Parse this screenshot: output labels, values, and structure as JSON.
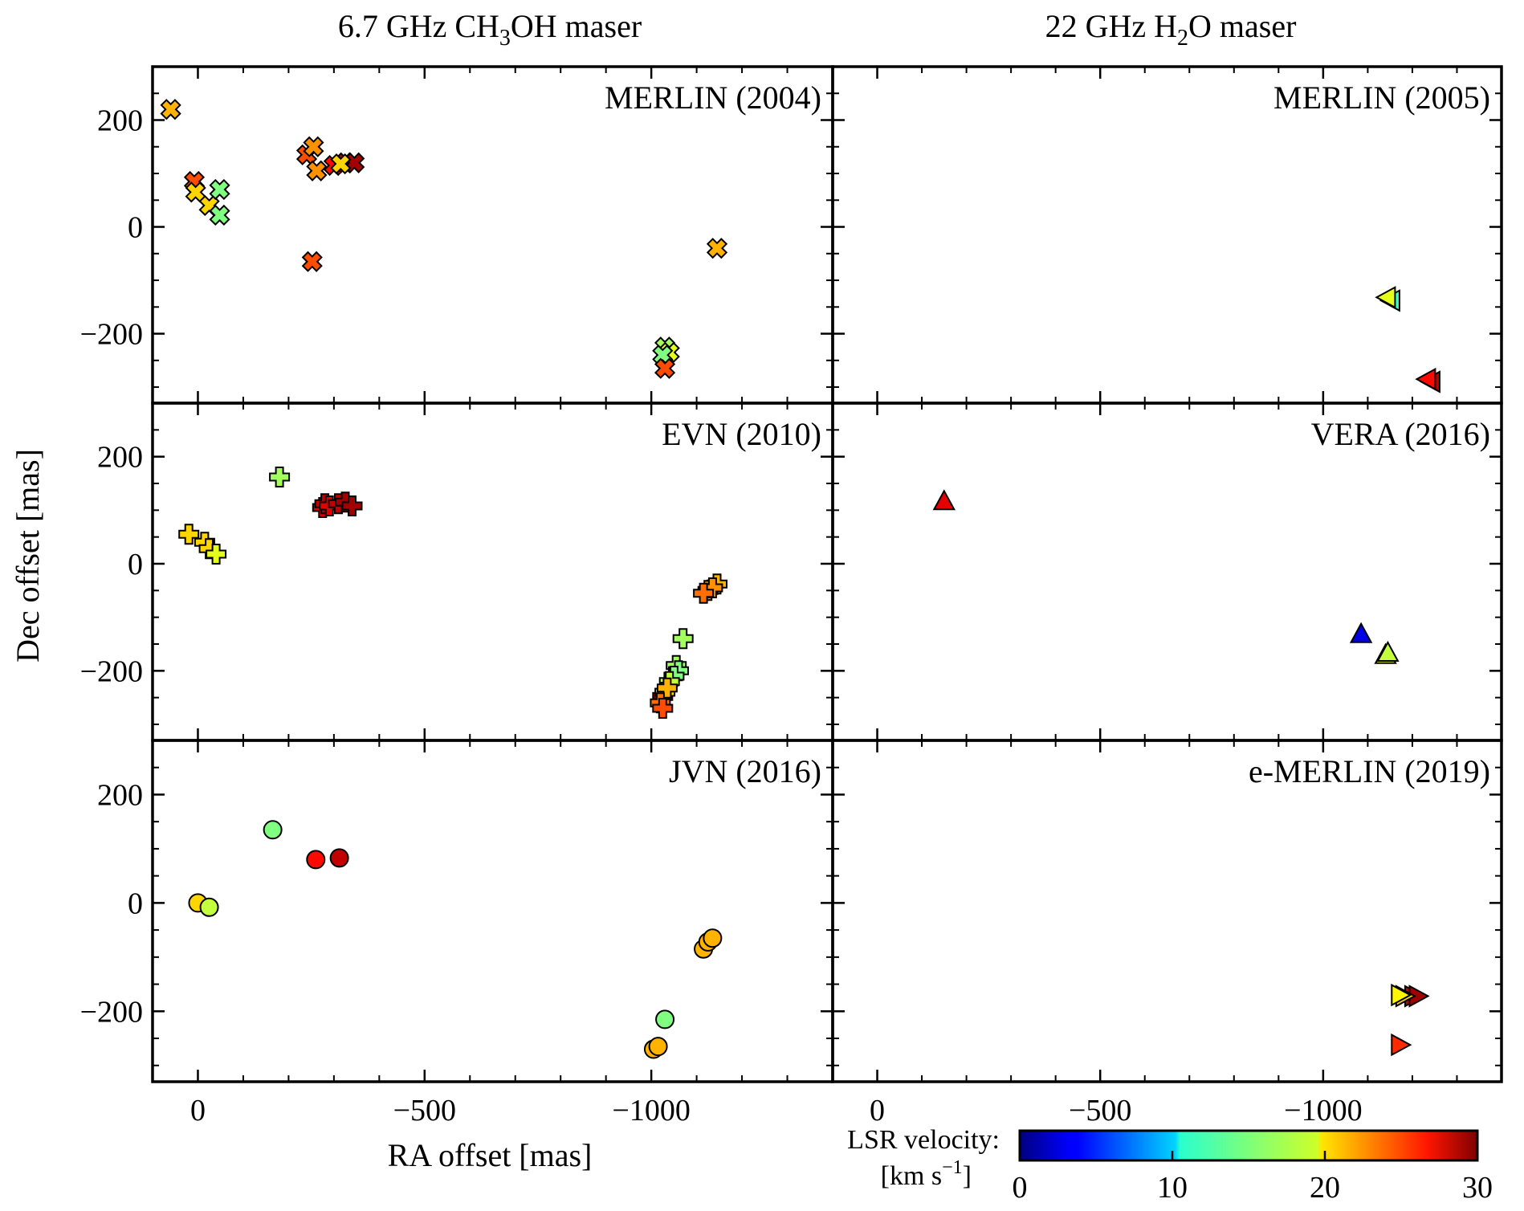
{
  "chart_data": {
    "type": "scatter",
    "column_titles": [
      {
        "main": "6.7 GHz CH",
        "sub": "3",
        "tail": "OH maser"
      },
      {
        "main": "22 GHz H",
        "sub": "2",
        "tail": "O maser"
      }
    ],
    "xlabel": "RA offset [mas]",
    "ylabel": "Dec offset [mas]",
    "xlim": [
      100,
      -1400
    ],
    "ylim": [
      -330,
      300
    ],
    "xticks": [
      0,
      -500,
      -1000
    ],
    "xtick_labels": [
      "0",
      "−500",
      "−1000"
    ],
    "yticks": [
      200,
      0,
      -200
    ],
    "ytick_labels": [
      "200",
      "0",
      "−200"
    ],
    "colorbar": {
      "label_line1": "LSR velocity:",
      "label_line2": "[km s",
      "label_exp": "−1",
      "label_close": "]",
      "range": [
        0,
        30
      ],
      "ticks": [
        0,
        10,
        20,
        30
      ],
      "tick_labels": [
        "0",
        "10",
        "20",
        "30"
      ],
      "colormap": "jet"
    },
    "panels": [
      {
        "id": "merlin-2004",
        "label": "MERLIN (2004)",
        "marker": "x",
        "points": [
          [
            60,
            220,
            21
          ],
          [
            8,
            85,
            24
          ],
          [
            5,
            65,
            20
          ],
          [
            -25,
            40,
            20
          ],
          [
            -48,
            70,
            15
          ],
          [
            -48,
            22,
            15
          ],
          [
            -240,
            135,
            24
          ],
          [
            -255,
            150,
            22
          ],
          [
            -262,
            105,
            22
          ],
          [
            -300,
            115,
            26
          ],
          [
            -325,
            120,
            28
          ],
          [
            -345,
            120,
            29
          ],
          [
            -315,
            118,
            20
          ],
          [
            -252,
            -65,
            24
          ],
          [
            -1145,
            -40,
            21
          ],
          [
            -1030,
            -225,
            16
          ],
          [
            -1040,
            -235,
            18
          ],
          [
            -1025,
            -240,
            15
          ],
          [
            -1030,
            -265,
            24
          ]
        ]
      },
      {
        "id": "merlin-2005",
        "label": "MERLIN (2005)",
        "marker": "tri-left",
        "points": [
          [
            -1155,
            -138,
            13
          ],
          [
            -1145,
            -132,
            18
          ],
          [
            -1245,
            -290,
            28
          ],
          [
            -1235,
            -285,
            26
          ]
        ]
      },
      {
        "id": "evn-2010",
        "label": "EVN (2010)",
        "marker": "plus",
        "points": [
          [
            20,
            55,
            20
          ],
          [
            -15,
            40,
            20
          ],
          [
            -25,
            28,
            20
          ],
          [
            -40,
            18,
            18
          ],
          [
            -180,
            162,
            16
          ],
          [
            -275,
            105,
            27
          ],
          [
            -280,
            112,
            28
          ],
          [
            -290,
            108,
            27
          ],
          [
            -310,
            112,
            28
          ],
          [
            -325,
            115,
            29
          ],
          [
            -340,
            108,
            29
          ],
          [
            -1145,
            -38,
            21
          ],
          [
            -1125,
            -50,
            22
          ],
          [
            -1135,
            -45,
            22
          ],
          [
            -1115,
            -55,
            23
          ],
          [
            -1070,
            -140,
            16
          ],
          [
            -1055,
            -190,
            16
          ],
          [
            -1060,
            -200,
            15
          ],
          [
            -1050,
            -210,
            15
          ],
          [
            -1040,
            -220,
            17
          ],
          [
            -1025,
            -248,
            30
          ],
          [
            -1030,
            -240,
            20
          ],
          [
            -1035,
            -232,
            21
          ],
          [
            -1020,
            -260,
            23
          ],
          [
            -1025,
            -270,
            24
          ]
        ]
      },
      {
        "id": "vera-2016",
        "label": "VERA (2016)",
        "marker": "tri-up",
        "points": [
          [
            -150,
            115,
            27
          ],
          [
            -1085,
            -133,
            3
          ],
          [
            -1140,
            -172,
            19
          ],
          [
            -1145,
            -168,
            17
          ]
        ]
      },
      {
        "id": "jvn-2016",
        "label": "JVN (2016)",
        "marker": "circle",
        "points": [
          [
            0,
            0,
            20
          ],
          [
            -25,
            -8,
            17
          ],
          [
            -165,
            135,
            15
          ],
          [
            -260,
            80,
            26
          ],
          [
            -312,
            83,
            28
          ],
          [
            -1115,
            -85,
            21
          ],
          [
            -1125,
            -72,
            21
          ],
          [
            -1135,
            -65,
            21
          ],
          [
            -1030,
            -215,
            15
          ],
          [
            -1005,
            -270,
            21
          ],
          [
            -1015,
            -265,
            21
          ]
        ]
      },
      {
        "id": "e-merlin-2019",
        "label": "e-MERLIN (2019)",
        "marker": "tri-right",
        "points": [
          [
            -1200,
            -172,
            28
          ],
          [
            -1210,
            -172,
            29
          ],
          [
            -1180,
            -172,
            20
          ],
          [
            -1170,
            -170,
            19
          ],
          [
            -1170,
            -262,
            25
          ]
        ]
      }
    ]
  }
}
